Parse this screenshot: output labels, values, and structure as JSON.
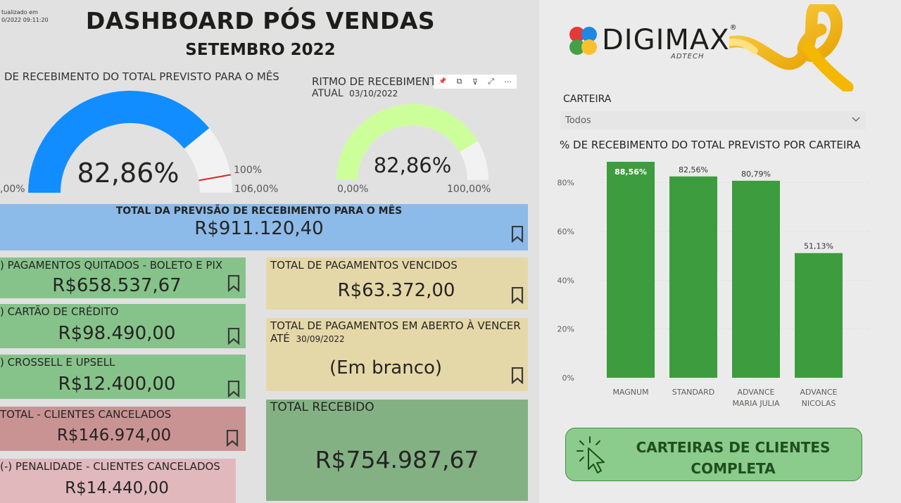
{
  "header": {
    "updated_line1": "tualizado em",
    "updated_line2": "0/2022 09:11:20",
    "title": "DASHBOARD PÓS VENDAS",
    "subtitle": "SETEMBRO 2022"
  },
  "gauge_main": {
    "title": "DE RECEBIMENTO DO TOTAL PREVISTO PARA O MÊS",
    "value_text": "82,86%",
    "min_label": ",00%",
    "target_label": "100%",
    "max_label": "106,00%",
    "fill_fraction": 0.7817,
    "target_fraction": 0.9434,
    "fill_color": "#118dff",
    "track_color": "#f2f2f2",
    "target_color": "#d62728"
  },
  "gauge_rhythm": {
    "title_line1": "RITMO DE RECEBIMENT",
    "title_line2_prefix": "ATUAL",
    "title_date": "03/10/2022",
    "value_text": "82,86%",
    "min_label": "0,00%",
    "max_label": "100,00%",
    "fill_fraction": 0.8286,
    "fill_color": "#ccff99",
    "track_color": "#f2f2f2"
  },
  "toolbar": {
    "pin": "📌",
    "copy": "⧉",
    "filter": "⊽",
    "focus": "⤢",
    "more": "···"
  },
  "cards": {
    "forecast": {
      "title": "TOTAL DA PREVISÃO DE RECEBIMENTO PARA O MÊS",
      "value": "R$911.120,40"
    },
    "paid": {
      "title": ") PAGAMENTOS QUITADOS - BOLETO E PIX",
      "value": "R$658.537,67"
    },
    "credit_card": {
      "title": ") CARTÃO DE CRÉDITO",
      "value": "R$98.490,00"
    },
    "crossell": {
      "title": ") CROSSELL E UPSELL",
      "value": "R$12.400,00"
    },
    "cancelled": {
      "title": "TOTAL - CLIENTES CANCELADOS",
      "value": "R$146.974,00"
    },
    "penalty": {
      "title": "(-) PENALIDADE - CLIENTES CANCELADOS",
      "value": "R$14.440,00"
    },
    "overdue": {
      "title": "TOTAL DE PAGAMENTOS VENCIDOS",
      "value": "R$63.372,00"
    },
    "open": {
      "title_line1": "TOTAL DE PAGAMENTOS EM ABERTO À VENCER",
      "title_line2_prefix": "ATÉ",
      "title_date": "30/09/2022",
      "value": "(Em branco)"
    },
    "received": {
      "title": "TOTAL RECEBIDO",
      "value": "R$754.987,67"
    }
  },
  "logo": {
    "text": "DIGIMAX",
    "registered": "®",
    "sub": "ADTECH"
  },
  "slicer": {
    "label": "CARTEIRA",
    "value": "Todos"
  },
  "chart_data": {
    "type": "bar",
    "title": "% DE RECEBIMENTO DO TOTAL PREVISTO POR CARTEIRA",
    "categories": [
      [
        "MAGNUM"
      ],
      [
        "STANDARD"
      ],
      [
        "ADVANCE",
        "MARIA JULIA"
      ],
      [
        "ADVANCE",
        "NICOLAS"
      ]
    ],
    "values": [
      88.56,
      82.56,
      80.79,
      51.13
    ],
    "data_labels": [
      "88,56%",
      "82,56%",
      "80,79%",
      "51,13%"
    ],
    "y_ticks": [
      0,
      20,
      40,
      60,
      80
    ],
    "y_tick_labels": [
      "0%",
      "20%",
      "40%",
      "60%",
      "80%"
    ],
    "ylim": [
      0,
      90
    ],
    "grid": true,
    "bar_color": "#3d9c3d"
  },
  "cta": {
    "line1": "CARTEIRAS DE CLIENTES",
    "line2": "COMPLETA"
  }
}
